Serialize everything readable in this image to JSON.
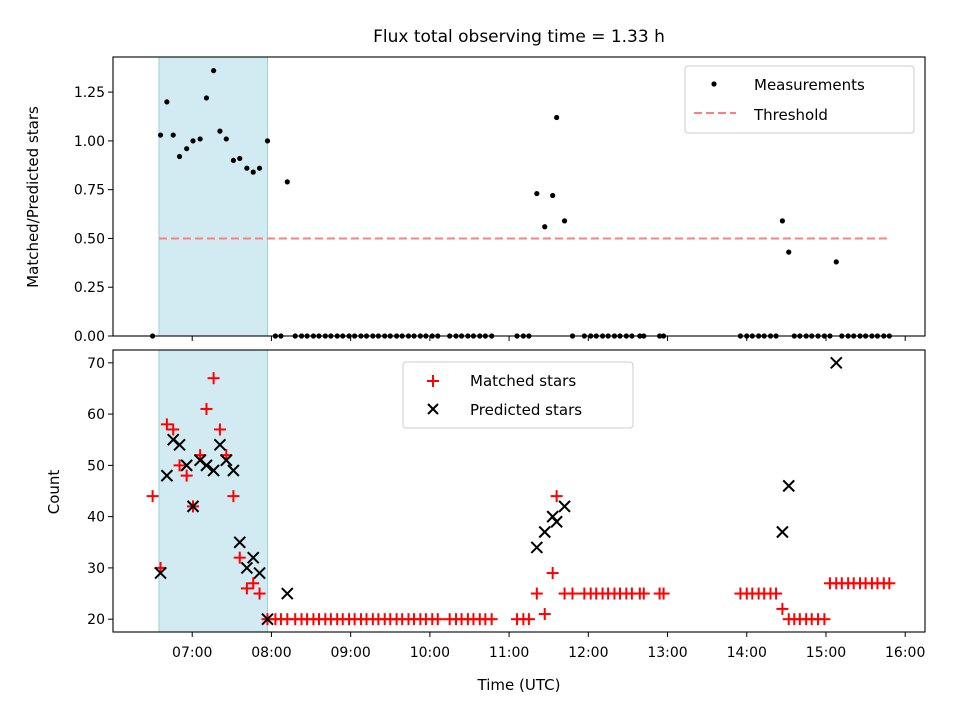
{
  "figure": {
    "title": "Flux total observing time = 1.33 h"
  },
  "chart_data": [
    {
      "type": "scatter",
      "ylabel": "Matched/Predicted stars",
      "xlim": [
        6.0,
        16.25
      ],
      "ylim": [
        0,
        1.43
      ],
      "yticks": [
        0.0,
        0.25,
        0.5,
        0.75,
        1.0,
        1.25
      ],
      "ytick_labels": [
        "0.00",
        "0.25",
        "0.50",
        "0.75",
        "1.00",
        "1.25"
      ],
      "xticks": [
        7,
        8,
        9,
        10,
        11,
        12,
        13,
        14,
        15,
        16
      ],
      "highlight_span": [
        6.58,
        7.95
      ],
      "highlight_color": "#add8e6",
      "legend_placement": "upper right",
      "legend": [
        {
          "label": "Measurements",
          "marker": "dot",
          "color": "#000000"
        },
        {
          "label": "Threshold",
          "marker": "dashed-line",
          "color": "#ff7f7f"
        }
      ],
      "threshold": {
        "name": "Threshold",
        "y": 0.5,
        "x": [
          6.58,
          15.8
        ],
        "color": "#ff7f7f"
      },
      "series": [
        {
          "name": "Measurements",
          "color": "#000000",
          "x": [
            6.5,
            6.6,
            6.68,
            6.76,
            6.84,
            6.93,
            7.01,
            7.1,
            7.18,
            7.27,
            7.35,
            7.43,
            7.52,
            7.6,
            7.69,
            7.77,
            7.85,
            7.95,
            8.05,
            8.12,
            8.2,
            8.3,
            8.38,
            8.45,
            8.53,
            8.6,
            8.68,
            8.75,
            8.83,
            8.9,
            8.98,
            9.05,
            9.13,
            9.2,
            9.28,
            9.35,
            9.43,
            9.5,
            9.58,
            9.65,
            9.73,
            9.8,
            9.88,
            9.95,
            10.03,
            10.1,
            10.25,
            10.33,
            10.4,
            10.48,
            10.55,
            10.63,
            10.7,
            10.78,
            11.1,
            11.18,
            11.25,
            11.35,
            11.45,
            11.55,
            11.6,
            11.7,
            11.8,
            11.95,
            12.03,
            12.1,
            12.18,
            12.25,
            12.33,
            12.4,
            12.48,
            12.55,
            12.65,
            12.7,
            12.9,
            12.95,
            13.92,
            14.0,
            14.07,
            14.15,
            14.22,
            14.3,
            14.37,
            14.45,
            14.53,
            14.6,
            14.67,
            14.75,
            14.82,
            14.9,
            14.98,
            15.05,
            15.13,
            15.2,
            15.28,
            15.35,
            15.43,
            15.5,
            15.58,
            15.65,
            15.73,
            15.8
          ],
          "y": [
            0.0,
            1.03,
            1.2,
            1.03,
            0.92,
            0.96,
            1.0,
            1.01,
            1.22,
            1.36,
            1.05,
            1.01,
            0.9,
            0.91,
            0.86,
            0.84,
            0.86,
            1.0,
            0.0,
            0.0,
            0.79,
            0.0,
            0.0,
            0.0,
            0.0,
            0.0,
            0.0,
            0.0,
            0.0,
            0.0,
            0.0,
            0.0,
            0.0,
            0.0,
            0.0,
            0.0,
            0.0,
            0.0,
            0.0,
            0.0,
            0.0,
            0.0,
            0.0,
            0.0,
            0.0,
            0.0,
            0.0,
            0.0,
            0.0,
            0.0,
            0.0,
            0.0,
            0.0,
            0.0,
            0.0,
            0.0,
            0.0,
            0.73,
            0.56,
            0.72,
            1.12,
            0.59,
            0.0,
            0.0,
            0.0,
            0.0,
            0.0,
            0.0,
            0.0,
            0.0,
            0.0,
            0.0,
            0.0,
            0.0,
            0.0,
            0.0,
            0.0,
            0.0,
            0.0,
            0.0,
            0.0,
            0.0,
            0.0,
            0.59,
            0.43,
            0.0,
            0.0,
            0.0,
            0.0,
            0.0,
            0.0,
            0.0,
            0.38,
            0.0,
            0.0,
            0.0,
            0.0,
            0.0,
            0.0,
            0.0,
            0.0,
            0.0
          ]
        }
      ]
    },
    {
      "type": "scatter",
      "xlabel": "Time (UTC)",
      "ylabel": "Count",
      "xlim": [
        6.0,
        16.25
      ],
      "ylim": [
        17.5,
        72.5
      ],
      "yticks": [
        20,
        30,
        40,
        50,
        60,
        70
      ],
      "ytick_labels": [
        "20",
        "30",
        "40",
        "50",
        "60",
        "70"
      ],
      "xticks": [
        7,
        8,
        9,
        10,
        11,
        12,
        13,
        14,
        15,
        16
      ],
      "xtick_labels": [
        "07:00",
        "08:00",
        "09:00",
        "10:00",
        "11:00",
        "12:00",
        "13:00",
        "14:00",
        "15:00",
        "16:00"
      ],
      "highlight_span": [
        6.58,
        7.95
      ],
      "highlight_color": "#add8e6",
      "legend_placement": "upper center",
      "legend": [
        {
          "label": "Matched stars",
          "marker": "plus",
          "color": "#ff0000"
        },
        {
          "label": "Predicted stars",
          "marker": "x",
          "color": "#000000"
        }
      ],
      "series": [
        {
          "name": "Matched stars",
          "marker": "plus",
          "color": "#ff0000",
          "x": [
            6.5,
            6.6,
            6.68,
            6.76,
            6.84,
            6.93,
            7.01,
            7.1,
            7.18,
            7.27,
            7.35,
            7.43,
            7.52,
            7.6,
            7.69,
            7.77,
            7.85,
            7.95,
            8.05,
            8.12,
            8.2,
            8.3,
            8.38,
            8.45,
            8.53,
            8.6,
            8.68,
            8.75,
            8.83,
            8.9,
            8.98,
            9.05,
            9.13,
            9.2,
            9.28,
            9.35,
            9.43,
            9.5,
            9.58,
            9.65,
            9.73,
            9.8,
            9.88,
            9.95,
            10.03,
            10.1,
            10.25,
            10.33,
            10.4,
            10.48,
            10.55,
            10.63,
            10.7,
            10.78,
            11.1,
            11.18,
            11.25,
            11.35,
            11.45,
            11.55,
            11.6,
            11.7,
            11.8,
            11.95,
            12.03,
            12.1,
            12.18,
            12.25,
            12.33,
            12.4,
            12.48,
            12.55,
            12.65,
            12.7,
            12.9,
            12.95,
            13.92,
            14.0,
            14.07,
            14.15,
            14.22,
            14.3,
            14.37,
            14.45,
            14.53,
            14.6,
            14.67,
            14.75,
            14.82,
            14.9,
            14.98,
            15.05,
            15.13,
            15.2,
            15.28,
            15.35,
            15.43,
            15.5,
            15.58,
            15.65,
            15.73,
            15.8
          ],
          "y": [
            44,
            30,
            58,
            57,
            50,
            48,
            42,
            52,
            61,
            67,
            57,
            52,
            44,
            32,
            26,
            27,
            25,
            20,
            20,
            20,
            20,
            20,
            20,
            20,
            20,
            20,
            20,
            20,
            20,
            20,
            20,
            20,
            20,
            20,
            20,
            20,
            20,
            20,
            20,
            20,
            20,
            20,
            20,
            20,
            20,
            20,
            20,
            20,
            20,
            20,
            20,
            20,
            20,
            20,
            20,
            20,
            20,
            25,
            21,
            29,
            44,
            25,
            25,
            25,
            25,
            25,
            25,
            25,
            25,
            25,
            25,
            25,
            25,
            25,
            25,
            25,
            25,
            25,
            25,
            25,
            25,
            25,
            25,
            22,
            20,
            20,
            20,
            20,
            20,
            20,
            20,
            27,
            27,
            27,
            27,
            27,
            27,
            27,
            27,
            27,
            27,
            27
          ]
        },
        {
          "name": "Predicted stars",
          "marker": "x",
          "color": "#000000",
          "x": [
            6.6,
            6.68,
            6.76,
            6.84,
            6.93,
            7.01,
            7.1,
            7.18,
            7.27,
            7.35,
            7.43,
            7.52,
            7.6,
            7.69,
            7.77,
            7.85,
            7.95,
            8.2,
            11.35,
            11.45,
            11.55,
            11.6,
            11.7,
            14.45,
            14.53,
            15.13
          ],
          "y": [
            29,
            48,
            55,
            54,
            50,
            42,
            51,
            50,
            49,
            54,
            51,
            49,
            35,
            30,
            32,
            29,
            20,
            25,
            34,
            37,
            40,
            39,
            42,
            37,
            46,
            70
          ]
        }
      ]
    }
  ]
}
